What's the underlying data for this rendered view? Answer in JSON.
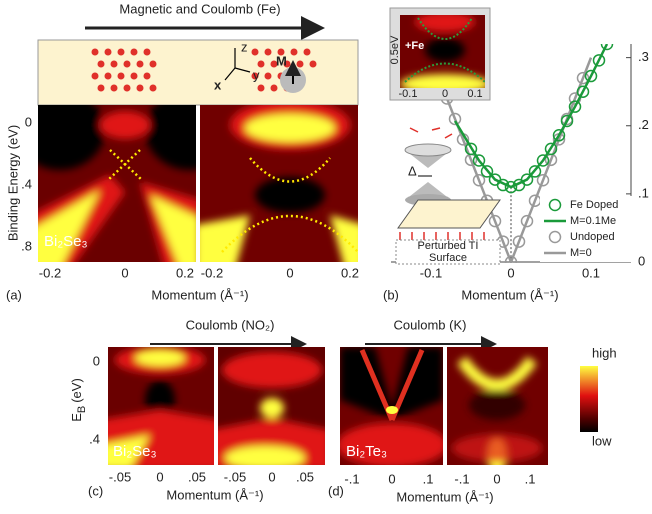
{
  "panel_a": {
    "arrow_label": "Magnetic and Coulomb (Fe)",
    "y_label": "Binding Energy (eV)",
    "y_ticks": [
      "0",
      ".4",
      ".8"
    ],
    "material": "Bi₂Se₃",
    "left_x_ticks": [
      "-0.2",
      "0",
      "0.2"
    ],
    "right_x_ticks": [
      "-0.2",
      "0",
      "0.2"
    ],
    "x_label": "Momentum (Å⁻¹)",
    "letter": "(a)",
    "axis_z": "z",
    "axis_y": "y",
    "axis_x": "x",
    "moment": "M"
  },
  "panel_b": {
    "letter": "(b)",
    "inset_energy": "0.5eV",
    "inset_label": "+Fe",
    "inset_ticks": [
      "-0.1",
      "0",
      "0.1"
    ],
    "gap": "Δ",
    "surface_label": [
      "Perturbed TI",
      "Surface"
    ],
    "chart_data": {
      "type": "scatter",
      "x_label": "Momentum (Å⁻¹)",
      "xlim": [
        -0.15,
        0.15
      ],
      "xticks": [
        -0.1,
        0,
        0.1
      ],
      "ylim": [
        0,
        0.32
      ],
      "yticks": [
        0,
        {
          "value": 0.1,
          "label": ".1"
        },
        {
          "value": 0.2,
          "label": ".2"
        },
        {
          "value": 0.3,
          "label": ".3"
        }
      ],
      "series": [
        {
          "name": "Fe Doped",
          "color": "#1a9a3a",
          "mark": "circle",
          "x": [
            -0.05,
            -0.04,
            -0.03,
            -0.02,
            -0.01,
            0,
            0.01,
            0.02,
            0.03,
            0.04,
            0.05,
            0.06,
            0.07,
            0.08,
            0.09,
            0.1,
            0.11,
            0.12
          ],
          "values": [
            0.166,
            0.149,
            0.133,
            0.121,
            0.113,
            0.11,
            0.113,
            0.121,
            0.133,
            0.149,
            0.166,
            0.186,
            0.207,
            0.228,
            0.25,
            0.273,
            0.296,
            0.32
          ]
        },
        {
          "name": "M=0.1Me",
          "color": "#1a9a3a",
          "mark": "line",
          "x": [
            -0.07,
            -0.04,
            -0.02,
            0,
            0.02,
            0.04,
            0.06,
            0.08,
            0.1,
            0.12
          ],
          "values": [
            0.207,
            0.149,
            0.121,
            0.11,
            0.121,
            0.149,
            0.186,
            0.228,
            0.273,
            0.32
          ]
        },
        {
          "name": "Undoped",
          "color": "#999999",
          "mark": "circle",
          "x": [
            -0.08,
            -0.07,
            -0.06,
            -0.05,
            -0.04,
            -0.03,
            -0.02,
            -0.01,
            0,
            0.01,
            0.02,
            0.03,
            0.04,
            0.05,
            0.06,
            0.07,
            0.08,
            0.09
          ],
          "values": [
            0.24,
            0.21,
            0.18,
            0.15,
            0.12,
            0.09,
            0.06,
            0.03,
            0,
            0.03,
            0.06,
            0.09,
            0.12,
            0.15,
            0.18,
            0.21,
            0.24,
            0.27
          ]
        },
        {
          "name": "M=0",
          "color": "#999999",
          "mark": "line",
          "x": [
            -0.1,
            0,
            0.1
          ],
          "values": [
            0.3,
            0,
            0.3
          ]
        }
      ]
    }
  },
  "panel_c": {
    "arrow_label": "Coulomb (NO₂)",
    "y_symbol": "E",
    "y_subscript": "B",
    "y_unit": "(eV)",
    "y_ticks": [
      "0",
      ".4"
    ],
    "material": "Bi₂Se₃",
    "left_x_ticks": [
      "-.05",
      "0",
      ".05"
    ],
    "right_x_ticks": [
      "-.05",
      "0",
      ".05"
    ],
    "x_label": "Momentum (Å⁻¹)",
    "letter": "(c)"
  },
  "panel_d": {
    "arrow_label": "Coulomb (K)",
    "material": "Bi₂Te₃",
    "left_x_ticks": [
      "-.1",
      "0",
      ".1"
    ],
    "right_x_ticks": [
      "-.1",
      "0",
      ".1"
    ],
    "x_label": "Momentum (Å⁻¹)",
    "letter": "(d)",
    "scale_high": "high",
    "scale_low": "low"
  }
}
